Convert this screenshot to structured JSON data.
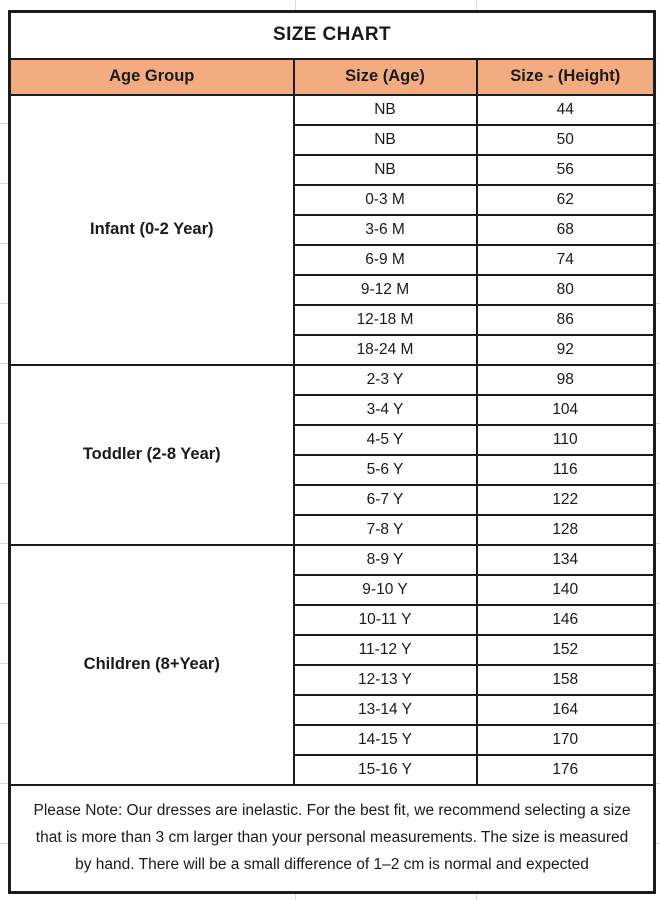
{
  "title": "SIZE CHART",
  "columns": [
    "Age Group",
    "Size (Age)",
    "Size - (Height)"
  ],
  "groups": [
    {
      "label": "Infant (0-2 Year)",
      "rows": [
        [
          "NB",
          "44"
        ],
        [
          "NB",
          "50"
        ],
        [
          "NB",
          "56"
        ],
        [
          "0-3 M",
          "62"
        ],
        [
          "3-6 M",
          "68"
        ],
        [
          "6-9 M",
          "74"
        ],
        [
          "9-12 M",
          "80"
        ],
        [
          "12-18 M",
          "86"
        ],
        [
          "18-24 M",
          "92"
        ]
      ]
    },
    {
      "label": "Toddler (2-8 Year)",
      "rows": [
        [
          "2-3 Y",
          "98"
        ],
        [
          "3-4 Y",
          "104"
        ],
        [
          "4-5 Y",
          "110"
        ],
        [
          "5-6 Y",
          "116"
        ],
        [
          "6-7 Y",
          "122"
        ],
        [
          "7-8 Y",
          "128"
        ]
      ]
    },
    {
      "label": "Children (8+Year)",
      "rows": [
        [
          "8-9 Y",
          "134"
        ],
        [
          "9-10 Y",
          "140"
        ],
        [
          "10-11 Y",
          "146"
        ],
        [
          "11-12 Y",
          "152"
        ],
        [
          "12-13 Y",
          "158"
        ],
        [
          "13-14 Y",
          "164"
        ],
        [
          "14-15 Y",
          "170"
        ],
        [
          "15-16 Y",
          "176"
        ]
      ]
    }
  ],
  "note": "Please Note: Our dresses are inelastic. For the best fit, we recommend selecting a size that is more than 3 cm larger than your personal measurements. The size is measured by hand. There will be a small difference of 1–2 cm is normal and expected",
  "colors": {
    "header_bg": "#F2AC80",
    "border": "#1c1c1c",
    "text": "#1a1a1a",
    "gridline": "#d9d9d9"
  }
}
